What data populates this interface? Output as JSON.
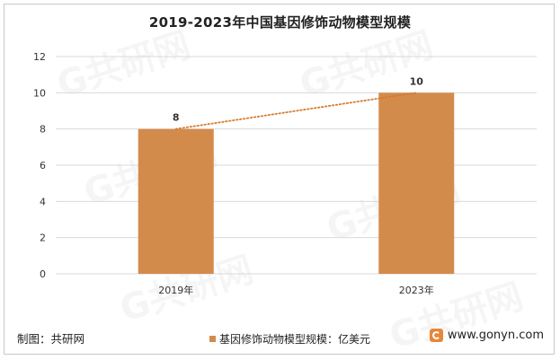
{
  "chart_data": {
    "type": "bar",
    "title": "2019-2023年中国基因修饰动物模型规模",
    "categories": [
      "2019年",
      "2023年"
    ],
    "series": [
      {
        "name": "基因修饰动物模型规模：亿美元",
        "values": [
          8,
          10
        ]
      }
    ],
    "data_labels": [
      "8",
      "10"
    ],
    "ylim": [
      0,
      12
    ],
    "yticks": [
      0,
      2,
      4,
      6,
      8,
      10,
      12
    ],
    "grid": true,
    "trendline": true,
    "legend_position": "bottom",
    "colors": {
      "bar": "#d38b4c",
      "trend": "#d67a2e",
      "grid": "#d9d9d9"
    }
  },
  "footer": {
    "source": "制图：共研网",
    "website": "www.gonyn.com",
    "logo_icon": "gonyn-logo-icon",
    "logo_color": "#e8873a"
  }
}
